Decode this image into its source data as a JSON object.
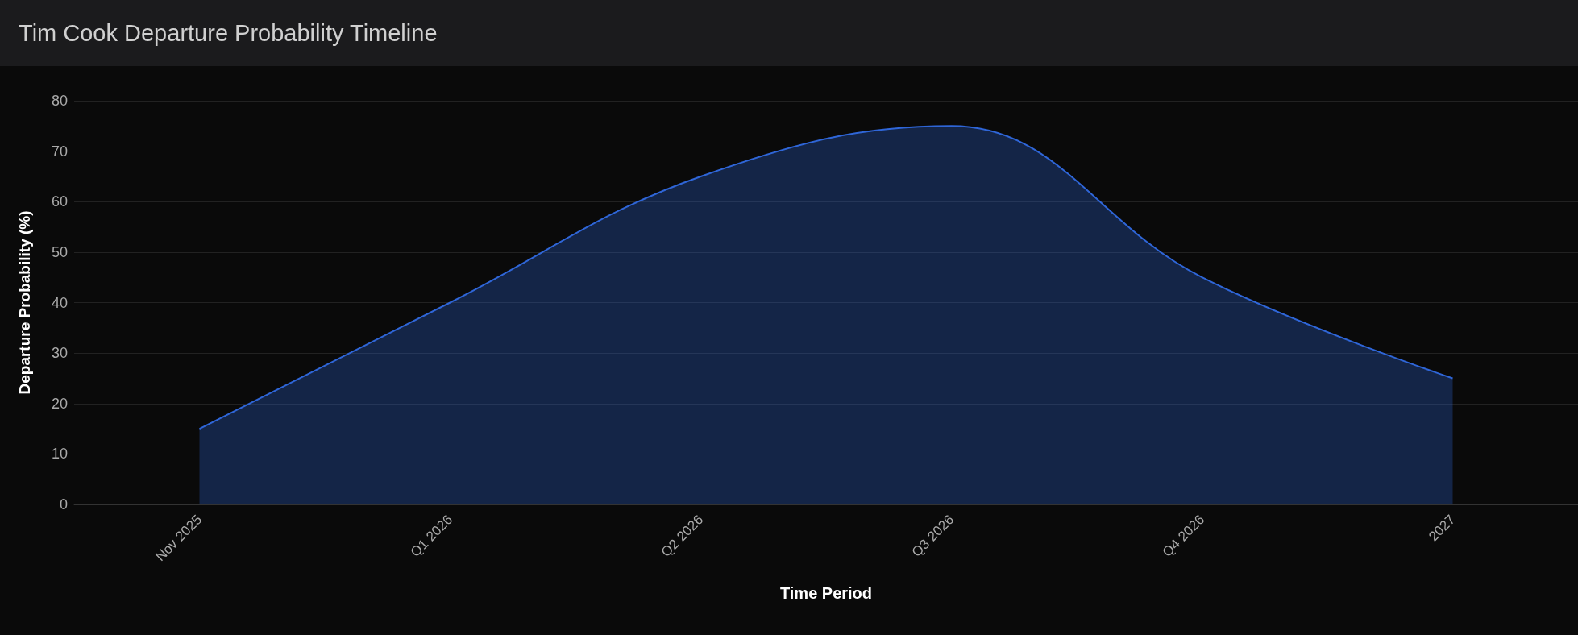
{
  "chart_data": {
    "type": "area",
    "title": "Tim Cook Departure Probability Timeline",
    "xlabel": "Time Period",
    "ylabel": "Departure Probability (%)",
    "categories": [
      "Nov 2025",
      "Q1 2026",
      "Q2 2026",
      "Q3 2026",
      "Q4 2026",
      "2027"
    ],
    "series": [
      {
        "color": "#2f66d8",
        "values": [
          15,
          40,
          65,
          75,
          45,
          25
        ]
      }
    ],
    "ylim": [
      0,
      80
    ],
    "yticks": [
      0,
      10,
      20,
      30,
      40,
      50,
      60,
      70,
      80
    ],
    "grid": "y",
    "marker": "none"
  }
}
